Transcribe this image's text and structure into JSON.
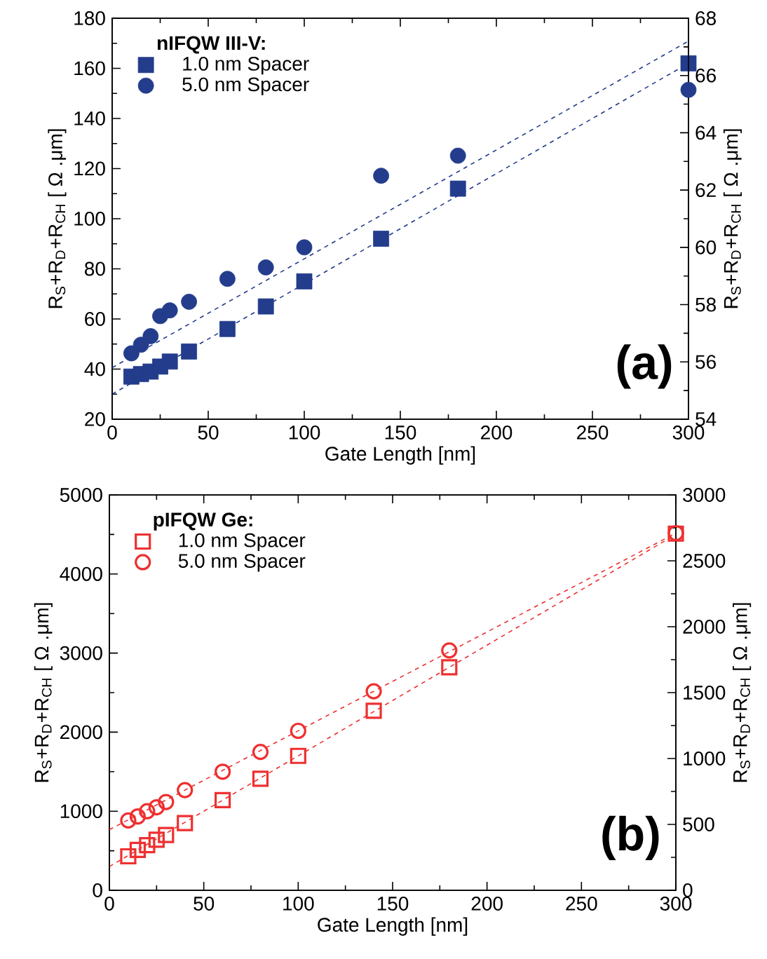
{
  "chart_data": [
    {
      "type": "scatter",
      "legend_title": "nIFQW III-V:",
      "xlabel": "Gate Length [nm]",
      "ylabel": "R$_{S}$+R$_{D}$+R$_{CH}$ [ Ω .μm]",
      "y2label": "R$_{S}$+R$_{D}$+R$_{CH}$ [ Ω .μm]",
      "xlim": [
        0,
        300
      ],
      "xticks": [
        0,
        50,
        100,
        150,
        200,
        250,
        300
      ],
      "ylim": [
        20,
        180
      ],
      "yticks": [
        20,
        40,
        60,
        80,
        100,
        120,
        140,
        160,
        180
      ],
      "y2lim": [
        54,
        68
      ],
      "y2ticks": [
        54,
        56,
        58,
        60,
        62,
        64,
        66,
        68
      ],
      "legend": "top left",
      "annotations": [
        "(a)"
      ],
      "series": [
        {
          "name": "1.0 nm Spacer",
          "marker": "square",
          "color": "#233c8c",
          "x": [
            10,
            15,
            20,
            25,
            30,
            40,
            60,
            80,
            100,
            140,
            180,
            300
          ],
          "values": [
            37,
            38,
            39,
            41,
            43,
            47,
            56,
            65,
            75,
            92,
            112,
            162
          ]
        },
        {
          "name": "5.0 nm Spacer",
          "marker": "circle",
          "color": "#233c8c",
          "axis": "y2",
          "x": [
            10,
            15,
            20,
            25,
            30,
            40,
            60,
            80,
            100,
            140,
            180,
            300
          ],
          "values": [
            56.3,
            56.6,
            56.9,
            57.6,
            57.8,
            58.1,
            58.9,
            59.3,
            60.0,
            62.5,
            63.2,
            65.5
          ]
        },
        {
          "type": "line",
          "line_style": "dashed",
          "marker": "none",
          "color": "#233c8c",
          "x": [
            0,
            300
          ],
          "values": [
            30,
            162
          ]
        },
        {
          "type": "line",
          "line_style": "dashed",
          "marker": "none",
          "color": "#233c8c",
          "axis": "y2",
          "x": [
            0,
            300
          ],
          "values": [
            55.8,
            67.2
          ]
        }
      ]
    },
    {
      "type": "scatter",
      "legend_title": "pIFQW Ge:",
      "xlabel": "Gate Length [nm]",
      "ylabel": "R$_{S}$+R$_{D}$+R$_{CH}$ [ Ω .μm]",
      "y2label": "R$_{S}$+R$_{D}$+R$_{CH}$ [ Ω .μm]",
      "xlim": [
        0,
        300
      ],
      "xticks": [
        0,
        50,
        100,
        150,
        200,
        250,
        300
      ],
      "ylim": [
        0,
        5000
      ],
      "yticks": [
        0,
        1000,
        2000,
        3000,
        4000,
        5000
      ],
      "y2lim": [
        0,
        3000
      ],
      "y2ticks": [
        0,
        500,
        1000,
        1500,
        2000,
        2500,
        3000
      ],
      "legend": "top left",
      "annotations": [
        "(b)"
      ],
      "series": [
        {
          "name": "1.0 nm Spacer",
          "marker": "square",
          "color": "#ee3030",
          "x": [
            10,
            15,
            20,
            25,
            30,
            40,
            60,
            80,
            100,
            140,
            180,
            300
          ],
          "values": [
            430,
            510,
            570,
            640,
            700,
            850,
            1140,
            1410,
            1700,
            2270,
            2820,
            4510
          ]
        },
        {
          "name": "5.0 nm Spacer",
          "marker": "circle",
          "color": "#ee3030",
          "axis": "y2",
          "x": [
            10,
            15,
            20,
            25,
            30,
            40,
            60,
            80,
            100,
            140,
            180,
            300
          ],
          "values": [
            530,
            560,
            600,
            630,
            670,
            760,
            900,
            1050,
            1210,
            1510,
            1820,
            2710
          ]
        },
        {
          "type": "line",
          "line_style": "dashed",
          "marker": "none",
          "color": "#ee3030",
          "x": [
            0,
            300
          ],
          "values": [
            300,
            4500
          ]
        },
        {
          "type": "line",
          "line_style": "dashed",
          "marker": "none",
          "color": "#ee3030",
          "axis": "y2",
          "x": [
            0,
            300
          ],
          "values": [
            460,
            2710
          ]
        }
      ]
    }
  ]
}
